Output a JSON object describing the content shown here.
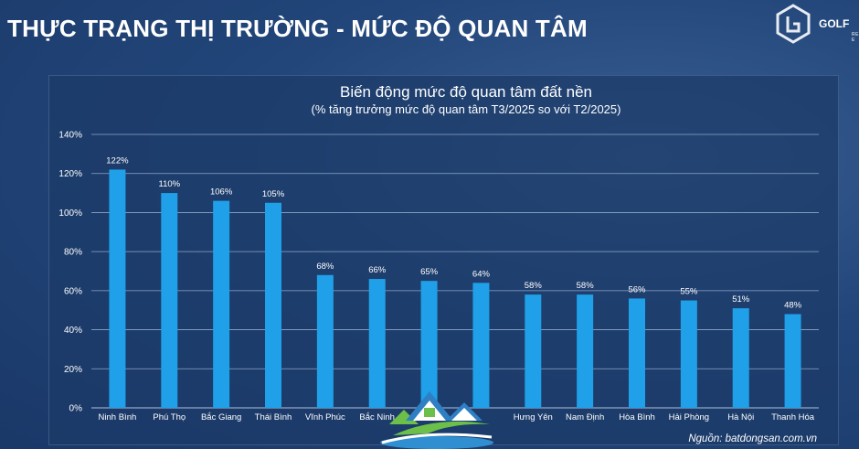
{
  "header": {
    "title": "THỰC TRẠNG THỊ TRƯỜNG - MỨC ĐỘ QUAN TÂM",
    "logo_text": "GOLF",
    "logo_subtext": "REAL E"
  },
  "source": "Nguồn: batdongsan.com.vn",
  "colors": {
    "bar": "#1fa0e8",
    "grid": "#8fa6c8",
    "background": "#22467a"
  },
  "chart_data": {
    "type": "bar",
    "title": "Biến động mức độ quan tâm đất nền",
    "subtitle": "(% tăng trưởng mức độ quan tâm T3/2025 so với T2/2025)",
    "categories": [
      "Ninh Bình",
      "Phú Thọ",
      "Bắc Giang",
      "Thái Bình",
      "Vĩnh Phúc",
      "Bắc Ninh",
      "",
      "",
      "Hưng Yên",
      "Nam Định",
      "Hòa Bình",
      "Hải Phòng",
      "Hà Nội",
      "Thanh Hóa"
    ],
    "values": [
      122,
      110,
      106,
      105,
      68,
      66,
      65,
      64,
      58,
      58,
      56,
      55,
      51,
      48
    ],
    "value_labels": [
      "122%",
      "110%",
      "106%",
      "105%",
      "68%",
      "66%",
      "65%",
      "64%",
      "58%",
      "58%",
      "56%",
      "55%",
      "51%",
      "48%"
    ],
    "yticks": [
      "0%",
      "20%",
      "40%",
      "60%",
      "80%",
      "100%",
      "120%",
      "140%"
    ],
    "ylim": [
      0,
      140
    ],
    "grid": true
  }
}
